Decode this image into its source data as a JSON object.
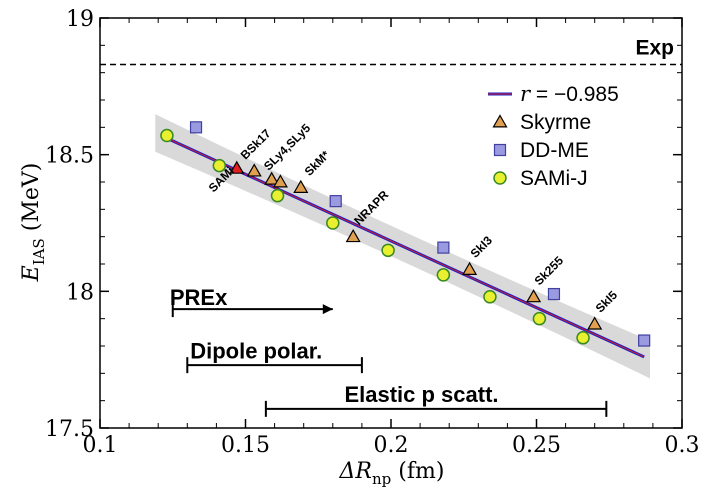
{
  "chart_data": {
    "type": "scatter",
    "xlim": [
      0.1,
      0.3
    ],
    "ylim": [
      17.5,
      19.0
    ],
    "x_ticks": [
      "0.1",
      "0.15",
      "0.2",
      "0.25",
      "0.3"
    ],
    "y_ticks": [
      "17.5",
      "18",
      "18.5",
      "19"
    ],
    "x_tick_values": [
      0.1,
      0.15,
      0.2,
      0.25,
      0.3
    ],
    "y_tick_values": [
      17.5,
      18.0,
      18.5,
      19.0
    ],
    "xlabel_main": "ΔR",
    "xlabel_sub": "np",
    "xlabel_unit": " (fm)",
    "ylabel_main": "E",
    "ylabel_sub": "IAS",
    "ylabel_unit": " (MeV)",
    "grid": false,
    "legend_position": "top-right",
    "legend": {
      "fit_label": "r = −0.985",
      "fit_label_r": "r",
      "fit_label_value": " = −0.985",
      "skyrme": "Skyrme",
      "ddme": "DD-ME",
      "sami": "SAMi-J"
    },
    "exp": {
      "label": "Exp",
      "value": 18.83
    },
    "fit": {
      "x": [
        0.123,
        0.287
      ],
      "y": [
        18.56,
        17.76
      ],
      "band_halfwidth": 0.06,
      "color": "#1f1fcc",
      "band_color": "#d9d9d9"
    },
    "series": [
      {
        "name": "Skyrme",
        "marker": "triangle",
        "color": "#e0a050",
        "points": [
          {
            "x": 0.153,
            "y": 18.44,
            "label": "SLy4,SLy5"
          },
          {
            "x": 0.159,
            "y": 18.41,
            "label": ""
          },
          {
            "x": 0.162,
            "y": 18.4,
            "label": ""
          },
          {
            "x": 0.169,
            "y": 18.38,
            "label": "SkM*"
          },
          {
            "x": 0.187,
            "y": 18.2,
            "label": "NRAPR"
          },
          {
            "x": 0.227,
            "y": 18.08,
            "label": "SkI3"
          },
          {
            "x": 0.249,
            "y": 17.98,
            "label": "Sk255"
          },
          {
            "x": 0.27,
            "y": 17.88,
            "label": "SkI5"
          }
        ]
      },
      {
        "name": "Skyrme (highlighted)",
        "marker": "triangle",
        "color": "#e02020",
        "points": [
          {
            "x": 0.147,
            "y": 18.45,
            "label": "BSk17"
          }
        ]
      },
      {
        "name": "DD-ME",
        "marker": "square",
        "color": "#9a9ae0",
        "points": [
          {
            "x": 0.133,
            "y": 18.6
          },
          {
            "x": 0.181,
            "y": 18.33
          },
          {
            "x": 0.218,
            "y": 18.16
          },
          {
            "x": 0.256,
            "y": 17.99
          },
          {
            "x": 0.287,
            "y": 17.82
          }
        ]
      },
      {
        "name": "SAMi-J",
        "marker": "circle",
        "color": "#e8f030",
        "points": [
          {
            "x": 0.123,
            "y": 18.57
          },
          {
            "x": 0.141,
            "y": 18.46
          },
          {
            "x": 0.161,
            "y": 18.35
          },
          {
            "x": 0.18,
            "y": 18.25
          },
          {
            "x": 0.199,
            "y": 18.15
          },
          {
            "x": 0.218,
            "y": 18.06
          },
          {
            "x": 0.234,
            "y": 17.98
          },
          {
            "x": 0.251,
            "y": 17.9
          },
          {
            "x": 0.266,
            "y": 17.83
          }
        ]
      }
    ],
    "annotations": [
      {
        "text": "SAMi",
        "x": 0.139,
        "y": 18.36,
        "rotate": -45
      },
      {
        "text": "BSk17",
        "x": 0.15,
        "y": 18.48,
        "rotate": -45
      },
      {
        "text": "SLy4,SLy5",
        "x": 0.158,
        "y": 18.44,
        "rotate": -45
      },
      {
        "text": "SkM*",
        "x": 0.172,
        "y": 18.42,
        "rotate": -45
      },
      {
        "text": "NRAPR",
        "x": 0.189,
        "y": 18.24,
        "rotate": -45
      },
      {
        "text": "SkI3",
        "x": 0.229,
        "y": 18.12,
        "rotate": -45
      },
      {
        "text": "Sk255",
        "x": 0.251,
        "y": 18.02,
        "rotate": -45
      },
      {
        "text": "SkI5",
        "x": 0.272,
        "y": 17.92,
        "rotate": -45
      }
    ],
    "ranges": [
      {
        "label": "PREx",
        "x_start": 0.125,
        "x_end": 0.18,
        "y": 17.935,
        "arrow": true,
        "label_x": 0.124,
        "label_y": 17.95,
        "font_size": 22
      },
      {
        "label": "Dipole polar.",
        "x_start": 0.13,
        "x_end": 0.19,
        "y": 17.73,
        "arrow": false,
        "label_x": 0.131,
        "label_y": 17.755,
        "font_size": 22
      },
      {
        "label": "Elastic p scatt.",
        "x_start": 0.157,
        "x_end": 0.274,
        "y": 17.57,
        "arrow": false,
        "label_x": 0.184,
        "label_y": 17.595,
        "font_size": 22
      }
    ]
  }
}
